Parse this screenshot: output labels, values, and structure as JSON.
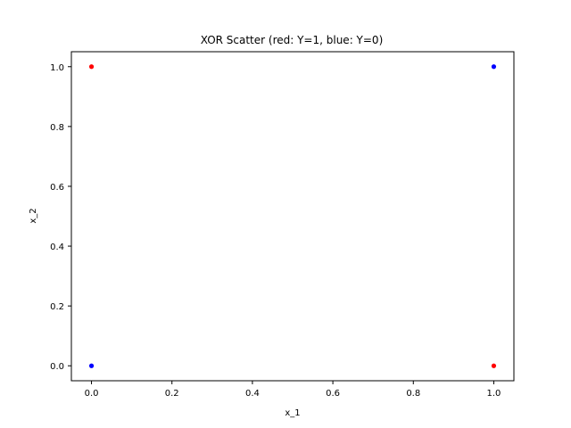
{
  "chart_data": {
    "type": "scatter",
    "title": "XOR Scatter (red: Y=1, blue: Y=0)",
    "xlabel": "x_1",
    "ylabel": "x_2",
    "xlim": [
      -0.05,
      1.05
    ],
    "ylim": [
      -0.05,
      1.05
    ],
    "xticks": [
      0.0,
      0.2,
      0.4,
      0.6,
      0.8,
      1.0
    ],
    "yticks": [
      0.0,
      0.2,
      0.4,
      0.6,
      0.8,
      1.0
    ],
    "xtick_labels": [
      "0.0",
      "0.2",
      "0.4",
      "0.6",
      "0.8",
      "1.0"
    ],
    "ytick_labels": [
      "0.0",
      "0.2",
      "0.4",
      "0.6",
      "0.8",
      "1.0"
    ],
    "grid": false,
    "points": [
      {
        "x": 0,
        "y": 1,
        "color": "#ff0000"
      },
      {
        "x": 1,
        "y": 0,
        "color": "#ff0000"
      },
      {
        "x": 0,
        "y": 0,
        "color": "#0000ff"
      },
      {
        "x": 1,
        "y": 1,
        "color": "#0000ff"
      }
    ]
  }
}
